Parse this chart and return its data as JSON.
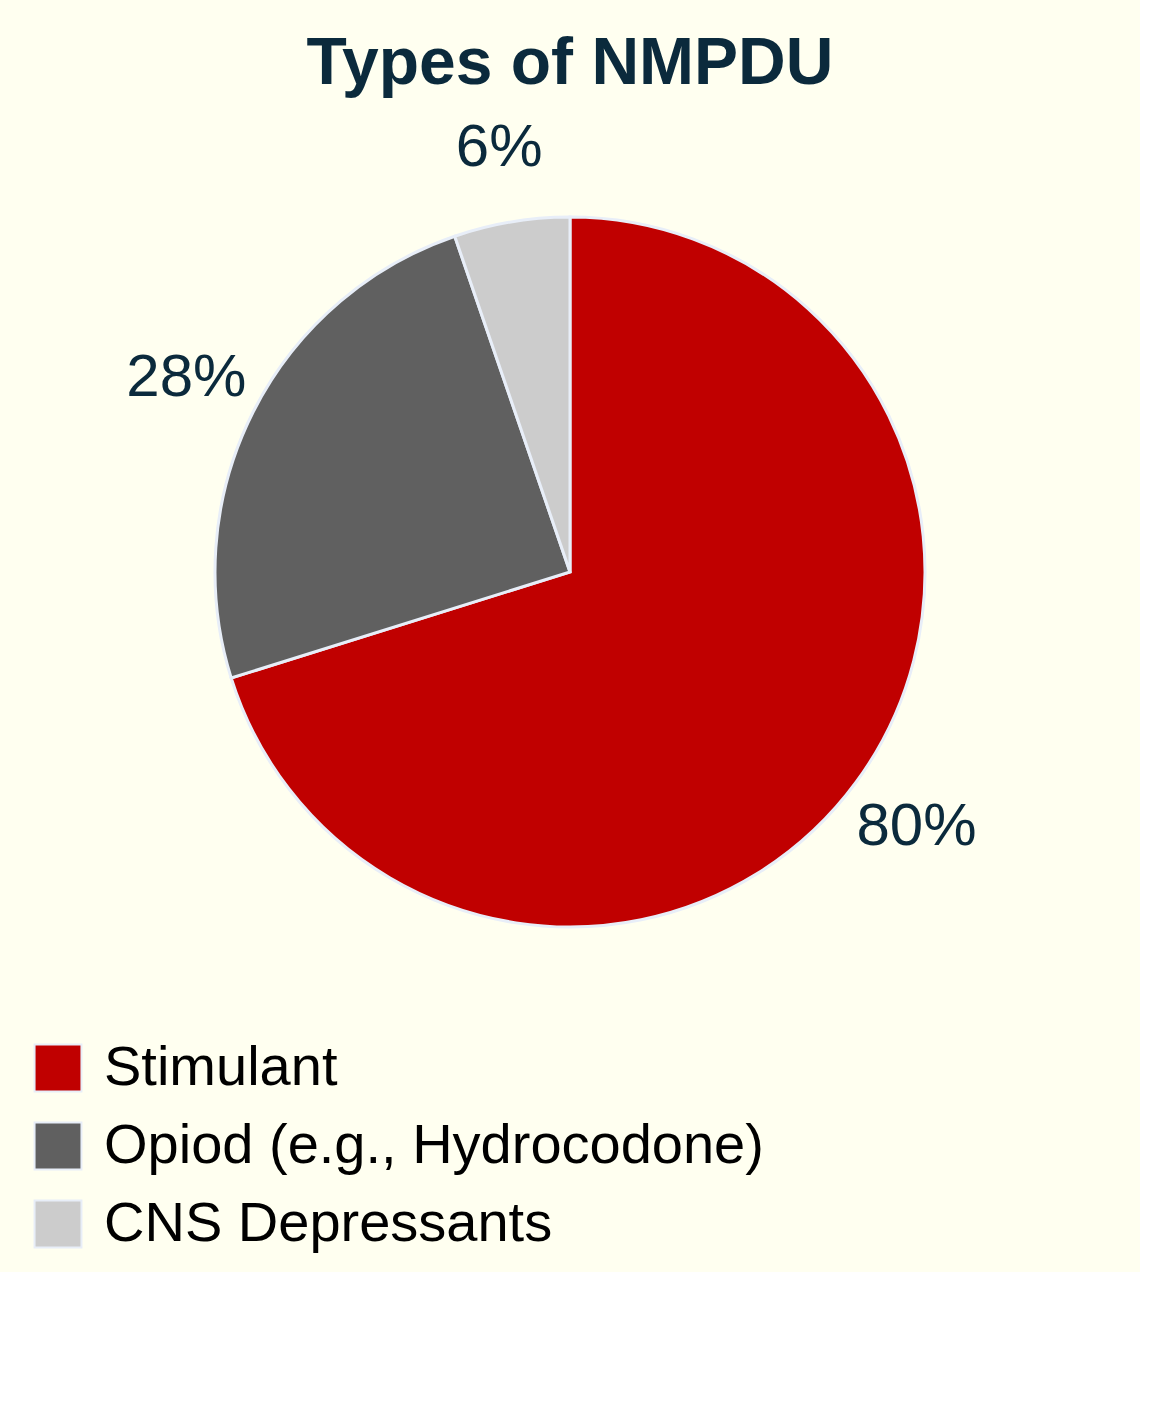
{
  "chart_data": {
    "type": "pie",
    "title": "Types of NMPDU",
    "categories": [
      "Stimulant",
      "Opiod (e.g., Hydrocodone)",
      "CNS Depressants"
    ],
    "values": [
      80,
      28,
      6
    ],
    "colors": [
      "#c00000",
      "#606060",
      "#cccccc"
    ],
    "value_labels": [
      "80%",
      "28%",
      "6%"
    ],
    "legend": "bottom left"
  }
}
